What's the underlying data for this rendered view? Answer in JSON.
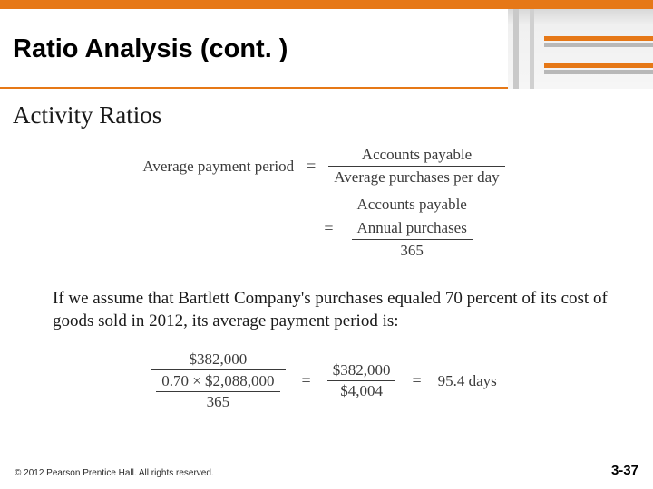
{
  "header": {
    "title": "Ratio Analysis (cont. )"
  },
  "section": {
    "heading": "Activity Ratios"
  },
  "formula1": {
    "lhs": "Average payment period",
    "eq": "=",
    "rhs1_num": "Accounts payable",
    "rhs1_den": "Average purchases per day",
    "rhs2_num": "Accounts payable",
    "rhs2_den_num": "Annual purchases",
    "rhs2_den_den": "365"
  },
  "body": {
    "text": "If we assume that Bartlett Company's purchases equaled 70 percent of its cost of goods sold in 2012, its average payment period is:"
  },
  "calc": {
    "left_num": "$382,000",
    "left_den_num": "0.70 × $2,088,000",
    "left_den_den": "365",
    "mid_num": "$382,000",
    "mid_den": "$4,004",
    "result": "95.4 days",
    "eq": "="
  },
  "footer": {
    "copyright": "© 2012 Pearson Prentice Hall. All rights reserved.",
    "page": "3-37"
  },
  "colors": {
    "accent": "#e67817",
    "text": "#1a1a1a"
  }
}
